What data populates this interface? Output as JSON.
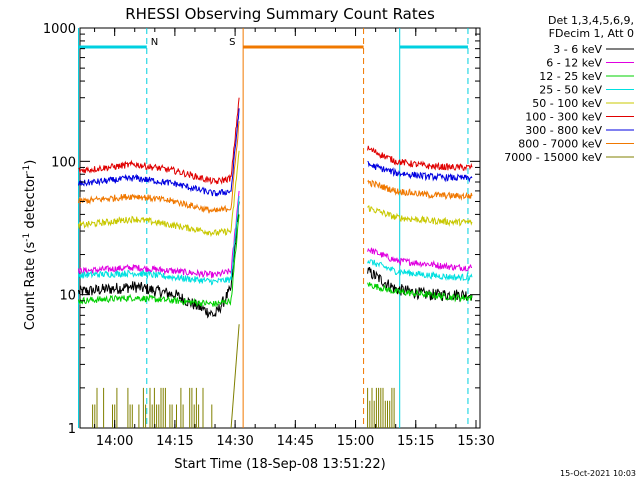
{
  "chart_data": {
    "type": "line",
    "title": "RHESSI Observing Summary Count Rates",
    "xlabel": "Start Time (18-Sep-08 13:51:22)",
    "ylabel_main": "Count Rate (s",
    "ylabel_sup1": "-1",
    "ylabel_mid": " detector",
    "ylabel_sup2": "-1",
    "ylabel_end": ")",
    "yscale": "log",
    "ylim": [
      1,
      1000
    ],
    "xlim": [
      "13:51:22",
      "15:31:00"
    ],
    "x_ticks": [
      "14:00",
      "14:15",
      "14:30",
      "14:45",
      "15:00",
      "15:15",
      "15:30"
    ],
    "y_ticks": [
      "1",
      "10",
      "100",
      "1000"
    ],
    "legend_header": [
      "Det 1,3,4,5,6,9,",
      "FDecim 1, Att 0"
    ],
    "footer_date": "15-Oct-2021 10:03",
    "flags": [
      {
        "label": "N",
        "color": "#00d0e0",
        "segments": [
          [
            "13:51",
            "14:08"
          ],
          [
            "15:11",
            "15:28"
          ]
        ]
      },
      {
        "label": "S",
        "color": "#f07800",
        "segments": [
          [
            "14:32",
            "15:02"
          ]
        ]
      }
    ],
    "markers": {
      "solid_cyan": [
        "13:51",
        "15:11"
      ],
      "dashed_cyan": [
        "14:08",
        "15:28"
      ],
      "solid_orange": [
        "14:32"
      ],
      "dashed_orange": [
        "15:02"
      ]
    },
    "series": [
      {
        "name": "3 - 6 keV",
        "color": "#000000",
        "pre": [
          10.5,
          11.5,
          10,
          7,
          11,
          50
        ],
        "post": [
          15,
          11,
          10,
          10,
          10
        ]
      },
      {
        "name": "6 - 12 keV",
        "color": "#e000e0",
        "pre": [
          15,
          16,
          15,
          14,
          15,
          60
        ],
        "post": [
          22,
          18,
          17,
          16,
          16
        ]
      },
      {
        "name": "12 - 25 keV",
        "color": "#00d000",
        "pre": [
          9,
          9.5,
          9,
          8.5,
          9,
          40
        ],
        "post": [
          12,
          10.5,
          10,
          9.5,
          9.5
        ]
      },
      {
        "name": "25 - 50 keV",
        "color": "#00e0e0",
        "pre": [
          14,
          14.5,
          13.5,
          12.5,
          13,
          55
        ],
        "post": [
          18,
          15,
          14,
          13.5,
          13.5
        ]
      },
      {
        "name": "50 - 100 keV",
        "color": "#c8c800",
        "pre": [
          33,
          37,
          33,
          29,
          30,
          120
        ],
        "post": [
          45,
          38,
          36,
          35,
          35
        ]
      },
      {
        "name": "100 - 300 keV",
        "color": "#e00000",
        "pre": [
          85,
          95,
          85,
          70,
          75,
          300
        ],
        "post": [
          125,
          100,
          92,
          90,
          90
        ]
      },
      {
        "name": "300 - 800 keV",
        "color": "#0000e0",
        "pre": [
          68,
          75,
          68,
          57,
          60,
          250
        ],
        "post": [
          95,
          82,
          77,
          75,
          75
        ]
      },
      {
        "name": "800 - 7000 keV",
        "color": "#f07800",
        "pre": [
          50,
          55,
          50,
          42,
          45,
          200
        ],
        "post": [
          70,
          60,
          56,
          55,
          55
        ]
      },
      {
        "name": "7000 - 15000 keV",
        "color": "#808000",
        "pre": [
          1,
          1,
          1,
          1,
          1,
          6
        ],
        "post": [
          1,
          1,
          1,
          1,
          1
        ]
      }
    ],
    "sample_times_pre": [
      "13:51",
      "14:05",
      "14:15",
      "14:25",
      "14:29",
      "14:31"
    ],
    "sample_times_post": [
      "15:03",
      "15:10",
      "15:18",
      "15:25",
      "15:29"
    ]
  }
}
